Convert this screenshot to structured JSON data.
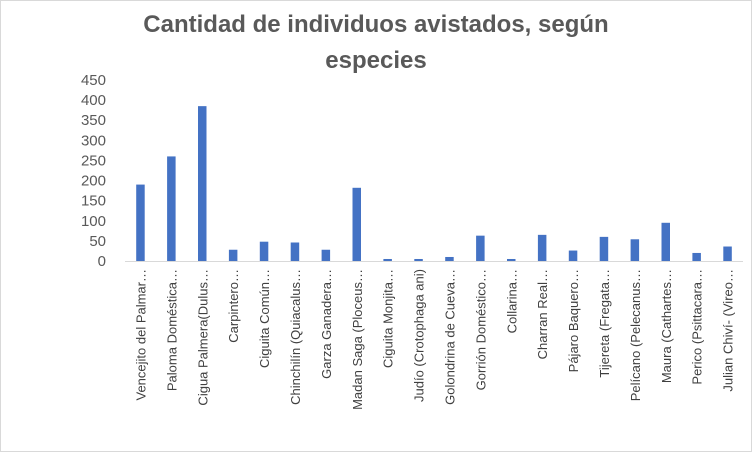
{
  "chart_data": {
    "type": "bar",
    "title_lines": [
      "Cantidad de individuos avistados, según",
      "especies"
    ],
    "title": "Cantidad de individuos avistados, según especies",
    "xlabel": "",
    "ylabel": "",
    "ylim": [
      0,
      450
    ],
    "yticks": [
      "0",
      "50",
      "100",
      "150",
      "200",
      "250",
      "300",
      "350",
      "400",
      "450"
    ],
    "grid": false,
    "legend": "none",
    "bar_color": "#4472c4",
    "categories": [
      "Vencejito del Palmar…",
      "Paloma Doméstica…",
      "Cigua Palmera(Dulus…",
      "Carpintero…",
      "Ciguita Común…",
      "Chinchilín (Quiacalus…",
      "Garza Ganadera…",
      "Madan Saga (Ploceus…",
      "Ciguita Monjita…",
      "Judío (Crotophaga ani)",
      "Golondrina de Cueva…",
      "Gorrión Doméstico…",
      "Collarina…",
      "Charran Real…",
      "Pájaro Baquero…",
      "Tijereta (Fregata…",
      "Pelícano (Pelecanus…",
      "Maura (Cathartes…",
      "Perico (Psittacara…",
      "Julian Chiví- (Vireo…"
    ],
    "values": [
      190,
      260,
      385,
      28,
      48,
      46,
      28,
      182,
      5,
      5,
      10,
      63,
      5,
      65,
      26,
      60,
      54,
      95,
      20,
      36
    ]
  }
}
